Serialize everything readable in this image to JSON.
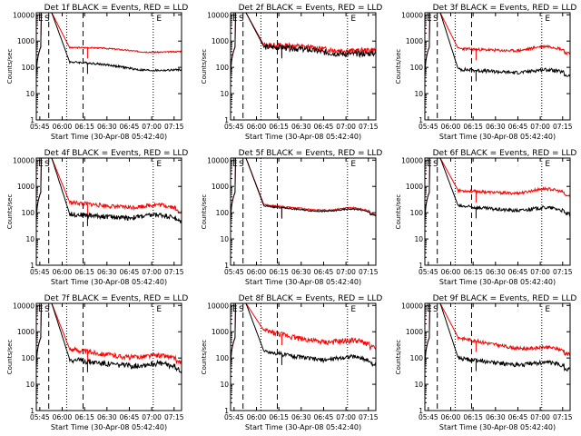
{
  "colors": {
    "events": "#000000",
    "lld": "#ff0000",
    "background": "#ffffff"
  },
  "chart_data": [
    {
      "type": "line",
      "title": "Det 1f BLACK = Events, RED = LLD",
      "xlabel": "Start Time (30-Apr-08 05:42:40)",
      "ylabel": "Counts/sec",
      "x_ticks": [
        "05:45",
        "06:00",
        "06:15",
        "06:30",
        "06:45",
        "07:00",
        "07:15"
      ],
      "y_ticks": [
        "1",
        "10",
        "100",
        "1000",
        "10000"
      ],
      "y_scale": "log",
      "ylim": [
        1,
        12000
      ],
      "grid": false,
      "markers": [
        "E",
        "S",
        "E"
      ],
      "series": [
        {
          "color": "#ff0000",
          "profile": "a",
          "s1": 560,
          "s2": 420,
          "mid": 460,
          "noise": 0.02
        },
        {
          "color": "#000000",
          "profile": "a",
          "s1": 160,
          "s2": 85,
          "mid": 110,
          "noise": 0.03
        }
      ]
    },
    {
      "type": "line",
      "title": "Det 2f BLACK = Events, RED = LLD",
      "xlabel": "Start Time (30-Apr-08 05:42:40)",
      "ylabel": "Counts/sec",
      "x_ticks": [
        "05:45",
        "06:00",
        "06:15",
        "06:30",
        "06:45",
        "07:00",
        "07:15"
      ],
      "y_ticks": [
        "1",
        "10",
        "100",
        "1000",
        "10000"
      ],
      "y_scale": "log",
      "ylim": [
        1,
        12000
      ],
      "grid": false,
      "markers": [
        "E",
        "S",
        "E"
      ],
      "series": [
        {
          "color": "#ff0000",
          "profile": "b",
          "s1": 700,
          "s2": 480,
          "mid": 560,
          "noise": 0.08
        },
        {
          "color": "#000000",
          "profile": "b",
          "s1": 600,
          "s2": 360,
          "mid": 470,
          "noise": 0.08
        }
      ]
    },
    {
      "type": "line",
      "title": "Det 3f BLACK = Events, RED = LLD",
      "xlabel": "Start Time (30-Apr-08 05:42:40)",
      "ylabel": "Counts/sec",
      "x_ticks": [
        "05:45",
        "06:00",
        "06:15",
        "06:30",
        "06:45",
        "07:00",
        "07:15"
      ],
      "y_ticks": [
        "1",
        "10",
        "100",
        "1000",
        "10000"
      ],
      "y_scale": "log",
      "ylim": [
        1,
        12000
      ],
      "grid": false,
      "markers": [
        "E",
        "S",
        "E"
      ],
      "series": [
        {
          "color": "#ff0000",
          "profile": "c",
          "s1": 520,
          "s2": 380,
          "mid": 420,
          "noise": 0.04
        },
        {
          "color": "#000000",
          "profile": "c",
          "s1": 85,
          "s2": 55,
          "mid": 45,
          "noise": 0.05
        }
      ]
    },
    {
      "type": "line",
      "title": "Det 4f BLACK = Events, RED = LLD",
      "xlabel": "Start Time (30-Apr-08 05:42:40)",
      "ylabel": "Counts/sec",
      "x_ticks": [
        "05:45",
        "06:00",
        "06:15",
        "06:30",
        "06:45",
        "07:00",
        "07:15"
      ],
      "y_ticks": [
        "1",
        "10",
        "100",
        "1000",
        "10000"
      ],
      "y_scale": "log",
      "ylim": [
        1,
        12000
      ],
      "grid": false,
      "markers": [
        "E",
        "S",
        "E"
      ],
      "series": [
        {
          "color": "#ff0000",
          "profile": "c",
          "s1": 250,
          "s2": 130,
          "mid": 120,
          "noise": 0.06
        },
        {
          "color": "#000000",
          "profile": "c",
          "s1": 90,
          "s2": 55,
          "mid": 48,
          "noise": 0.07
        }
      ]
    },
    {
      "type": "line",
      "title": "Det 5f BLACK = Events, RED = LLD",
      "xlabel": "Start Time (30-Apr-08 05:42:40)",
      "ylabel": "Counts/sec",
      "x_ticks": [
        "05:45",
        "06:00",
        "06:15",
        "06:30",
        "06:45",
        "07:00",
        "07:15"
      ],
      "y_ticks": [
        "1",
        "10",
        "100",
        "1000",
        "10000"
      ],
      "y_scale": "log",
      "ylim": [
        1,
        12000
      ],
      "grid": false,
      "markers": [
        "E",
        "S",
        "E"
      ],
      "series": [
        {
          "color": "#ff0000",
          "profile": "c",
          "s1": 200,
          "s2": 100,
          "mid": 90,
          "noise": 0.02
        },
        {
          "color": "#000000",
          "profile": "c",
          "s1": 180,
          "s2": 90,
          "mid": 80,
          "noise": 0.02
        }
      ]
    },
    {
      "type": "line",
      "title": "Det 6f BLACK = Events, RED = LLD",
      "xlabel": "Start Time (30-Apr-08 05:42:40)",
      "ylabel": "Counts/sec",
      "x_ticks": [
        "05:45",
        "06:00",
        "06:15",
        "06:30",
        "06:45",
        "07:00",
        "07:15"
      ],
      "y_ticks": [
        "1",
        "10",
        "100",
        "1000",
        "10000"
      ],
      "y_scale": "log",
      "ylim": [
        1,
        12000
      ],
      "grid": false,
      "markers": [
        "E",
        "S",
        "E"
      ],
      "series": [
        {
          "color": "#ff0000",
          "profile": "c",
          "s1": 700,
          "s2": 480,
          "mid": 550,
          "noise": 0.04
        },
        {
          "color": "#000000",
          "profile": "c",
          "s1": 180,
          "s2": 100,
          "mid": 95,
          "noise": 0.05
        }
      ]
    },
    {
      "type": "line",
      "title": "Det 7f BLACK = Events, RED = LLD",
      "xlabel": "Start Time (30-Apr-08 05:42:40)",
      "ylabel": "Counts/sec",
      "x_ticks": [
        "05:45",
        "06:00",
        "06:15",
        "06:30",
        "06:45",
        "07:00",
        "07:15"
      ],
      "y_ticks": [
        "1",
        "10",
        "100",
        "1000",
        "10000"
      ],
      "y_scale": "log",
      "ylim": [
        1,
        12000
      ],
      "grid": false,
      "markers": [
        "E",
        "S",
        "E"
      ],
      "series": [
        {
          "color": "#ff0000",
          "profile": "c",
          "s1": 220,
          "s2": 80,
          "mid": 80,
          "noise": 0.07
        },
        {
          "color": "#000000",
          "profile": "c",
          "s1": 90,
          "s2": 40,
          "mid": 38,
          "noise": 0.08
        }
      ]
    },
    {
      "type": "line",
      "title": "Det 8f BLACK = Events, RED = LLD",
      "xlabel": "Start Time (30-Apr-08 05:42:40)",
      "ylabel": "Counts/sec",
      "x_ticks": [
        "05:45",
        "06:00",
        "06:15",
        "06:30",
        "06:45",
        "07:00",
        "07:15"
      ],
      "y_ticks": [
        "1",
        "10",
        "100",
        "1000",
        "10000"
      ],
      "y_scale": "log",
      "ylim": [
        1,
        12000
      ],
      "grid": false,
      "markers": [
        "E",
        "S",
        "E"
      ],
      "series": [
        {
          "color": "#ff0000",
          "profile": "c",
          "s1": 1100,
          "s2": 260,
          "mid": 360,
          "noise": 0.08
        },
        {
          "color": "#000000",
          "profile": "c",
          "s1": 180,
          "s2": 60,
          "mid": 90,
          "noise": 0.06
        }
      ]
    },
    {
      "type": "line",
      "title": "Det 9f BLACK = Events, RED = LLD",
      "xlabel": "Start Time (30-Apr-08 05:42:40)",
      "ylabel": "Counts/sec",
      "x_ticks": [
        "05:45",
        "06:00",
        "06:15",
        "06:30",
        "06:45",
        "07:00",
        "07:15"
      ],
      "y_ticks": [
        "1",
        "10",
        "100",
        "1000",
        "10000"
      ],
      "y_scale": "log",
      "ylim": [
        1,
        12000
      ],
      "grid": false,
      "markers": [
        "E",
        "S",
        "E"
      ],
      "series": [
        {
          "color": "#ff0000",
          "profile": "c",
          "s1": 600,
          "s2": 160,
          "mid": 160,
          "noise": 0.05
        },
        {
          "color": "#000000",
          "profile": "c",
          "s1": 100,
          "s2": 42,
          "mid": 45,
          "noise": 0.06
        }
      ]
    }
  ]
}
